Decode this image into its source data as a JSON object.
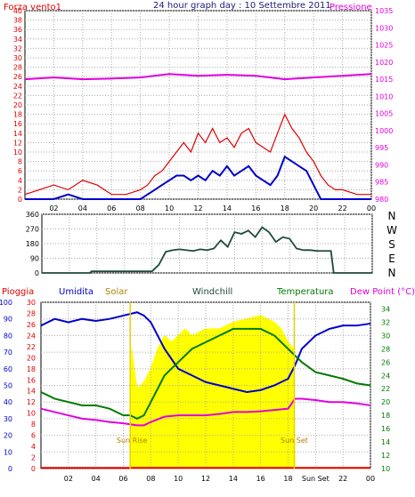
{
  "colors": {
    "red": "#e00000",
    "blue": "#0000cc",
    "magenta": "#e000e0",
    "darkgreen": "#1d4a3a",
    "green": "#007a00",
    "yellow": "#ffff00",
    "olive": "#b08000",
    "navy": "#20207a",
    "grid": "#aaaaaa"
  },
  "chart_data": [
    {
      "type": "line",
      "title": "24 hour graph day : 10 Settembre 2011",
      "legend_left": "Forza vento1",
      "legend_right": "Pressione",
      "x_ticks": [
        "02",
        "04",
        "06",
        "08",
        "10",
        "12",
        "14",
        "16",
        "18",
        "20",
        "22",
        "00"
      ],
      "y_left_ticks": [
        "0",
        "2",
        "4",
        "6",
        "8",
        "10",
        "12",
        "14",
        "16",
        "18",
        "20",
        "22",
        "24",
        "26",
        "28",
        "30",
        "32",
        "34",
        "36",
        "38",
        "40"
      ],
      "y_right_ticks": [
        "980",
        "985",
        "990",
        "995",
        "1000",
        "1005",
        "1010",
        "1015",
        "1020",
        "1025",
        "1030",
        "1035"
      ],
      "ylim_left": [
        0,
        40
      ],
      "ylim_right": [
        980,
        1035
      ],
      "series": [
        {
          "name": "Forza vento1",
          "axis": "left",
          "color": "#e00000",
          "x": [
            0,
            1,
            2,
            3,
            4,
            5,
            6,
            7,
            8,
            8.5,
            9,
            9.5,
            10,
            10.5,
            11,
            11.5,
            12,
            12.5,
            13,
            13.5,
            14,
            14.5,
            15,
            15.5,
            16,
            16.5,
            17,
            17.5,
            18,
            18.5,
            19,
            19.5,
            20,
            20.5,
            21,
            21.5,
            22,
            23,
            24
          ],
          "y": [
            1,
            2,
            3,
            2,
            4,
            3,
            1,
            1,
            2,
            3,
            5,
            6,
            8,
            10,
            12,
            10,
            14,
            12,
            15,
            12,
            13,
            11,
            14,
            15,
            12,
            11,
            10,
            14,
            18,
            15,
            13,
            10,
            8,
            5,
            3,
            2,
            2,
            1,
            1
          ]
        },
        {
          "name": "Gust",
          "axis": "left",
          "color": "#0000cc",
          "x": [
            0,
            1,
            2,
            3,
            4,
            5,
            6,
            7,
            8,
            8.5,
            9,
            9.5,
            10,
            10.5,
            11,
            11.5,
            12,
            12.5,
            13,
            13.5,
            14,
            14.5,
            15,
            15.5,
            16,
            16.5,
            17,
            17.5,
            18,
            18.5,
            19,
            19.5,
            20,
            20.5,
            21,
            22,
            23,
            24
          ],
          "y": [
            0,
            0,
            0,
            1,
            0,
            0,
            0,
            0,
            0,
            1,
            2,
            3,
            4,
            5,
            5,
            4,
            5,
            4,
            6,
            5,
            7,
            5,
            6,
            7,
            5,
            4,
            3,
            5,
            9,
            8,
            7,
            6,
            3,
            0,
            0,
            0,
            0,
            0
          ]
        },
        {
          "name": "Pressione",
          "axis": "right",
          "color": "#e000e0",
          "x": [
            0,
            2,
            4,
            6,
            8,
            10,
            12,
            14,
            16,
            18,
            20,
            22,
            24
          ],
          "y": [
            1015,
            1015.5,
            1015,
            1015.2,
            1015.5,
            1016.5,
            1016,
            1016.3,
            1016,
            1015,
            1015.5,
            1016,
            1016.5
          ]
        }
      ]
    },
    {
      "type": "line",
      "title": "",
      "y_left_ticks": [
        "0",
        "90",
        "180",
        "270",
        "360"
      ],
      "y_right_labels": [
        "N",
        "W",
        "S",
        "E",
        "N"
      ],
      "ylim_left": [
        0,
        360
      ],
      "series": [
        {
          "name": "Direzione vento",
          "axis": "left",
          "color": "#1d4a3a",
          "x": [
            0,
            3.5,
            3.6,
            6,
            7,
            8,
            8.5,
            9,
            9.5,
            10,
            10.5,
            11,
            11.5,
            12,
            12.5,
            13,
            13.5,
            14,
            14.5,
            15,
            15.5,
            16,
            16.5,
            17,
            17.5,
            18,
            18.5,
            19,
            19.5,
            20,
            21,
            21.2,
            22,
            24
          ],
          "y": [
            0,
            0,
            10,
            10,
            10,
            10,
            50,
            130,
            140,
            145,
            140,
            135,
            145,
            140,
            150,
            200,
            160,
            250,
            240,
            260,
            220,
            280,
            250,
            190,
            220,
            210,
            150,
            140,
            140,
            135,
            135,
            0,
            0,
            0
          ]
        }
      ]
    },
    {
      "type": "line",
      "legend": [
        "Pioggia",
        "Umidita",
        "Solar",
        "Windchill",
        "Temperatura",
        "Dew Point (°C)"
      ],
      "x_ticks": [
        "02",
        "04",
        "06",
        "08",
        "10",
        "12",
        "14",
        "16",
        "18",
        "Sun Set",
        "22",
        "00"
      ],
      "annotations": [
        "Sun Rise",
        "Sun Set"
      ],
      "y_hum_ticks": [
        "0",
        "10",
        "20",
        "30",
        "40",
        "50",
        "60",
        "70",
        "80",
        "90",
        "100"
      ],
      "y_rain_ticks": [
        "0",
        "2",
        "4",
        "6",
        "8",
        "10",
        "12",
        "14",
        "16",
        "18",
        "20",
        "22",
        "24",
        "26",
        "28",
        "30"
      ],
      "y_temp_ticks": [
        "10",
        "12",
        "14",
        "16",
        "18",
        "20",
        "22",
        "24",
        "26",
        "28",
        "30",
        "32",
        "34"
      ],
      "ylim_temp": [
        10,
        35
      ],
      "series": [
        {
          "name": "Solar",
          "axis": "temp",
          "color": "#ffff00",
          "x": [
            6.5,
            6.6,
            7,
            7.5,
            8,
            8.5,
            9,
            9.5,
            10,
            10.5,
            11,
            12,
            13,
            14,
            15,
            16,
            17,
            17.5,
            18,
            18.4,
            18.5,
            24
          ],
          "y": [
            10,
            28,
            22,
            23,
            25,
            28,
            30,
            29,
            30,
            31,
            30,
            31,
            31,
            32,
            32.5,
            33,
            32,
            31,
            29,
            28,
            10,
            10
          ]
        },
        {
          "name": "Umidita",
          "axis": "temp",
          "color": "#0000cc",
          "x": [
            0,
            1,
            2,
            3,
            4,
            5,
            6,
            7,
            7.5,
            8,
            9,
            10,
            11,
            12,
            13,
            14,
            15,
            16,
            17,
            18,
            18.5,
            19,
            20,
            21,
            22,
            23,
            24
          ],
          "y": [
            31.5,
            32.5,
            32,
            32.5,
            32.2,
            32.5,
            33,
            33.5,
            33,
            32,
            28,
            25,
            24,
            23,
            22.5,
            22,
            21.5,
            21.8,
            22.5,
            23.5,
            25.5,
            28,
            30,
            31,
            31.5,
            31.5,
            31.8
          ]
        },
        {
          "name": "Temperatura",
          "axis": "temp",
          "color": "#007a00",
          "x": [
            0,
            1,
            2,
            3,
            4,
            5,
            6,
            6.5,
            7,
            7.5,
            8,
            8.5,
            9,
            10,
            11,
            12,
            13,
            14,
            15,
            16,
            17,
            18,
            19,
            20,
            21,
            22,
            23,
            24
          ],
          "y": [
            21.5,
            20.5,
            20,
            19.5,
            19.5,
            19,
            18,
            18,
            17.5,
            18,
            20,
            22,
            24,
            26,
            28,
            29,
            30,
            31,
            31,
            31,
            30,
            28,
            26,
            24.5,
            24,
            23.5,
            22.8,
            22.5
          ]
        },
        {
          "name": "Dew Point (°C)",
          "axis": "temp",
          "color": "#e000e0",
          "x": [
            0,
            1,
            2,
            3,
            4,
            5,
            6,
            7,
            7.5,
            8,
            9,
            10,
            11,
            12,
            13,
            14,
            15,
            16,
            17,
            18,
            18.5,
            19,
            20,
            21,
            22,
            23,
            24
          ],
          "y": [
            19,
            18.5,
            18,
            17.5,
            17.3,
            17,
            16.8,
            16.5,
            16.5,
            17,
            17.8,
            18,
            18,
            18,
            18.2,
            18.5,
            18.5,
            18.6,
            18.8,
            19,
            20.5,
            20.5,
            20.3,
            20,
            20,
            19.8,
            19.5
          ]
        },
        {
          "name": "Pioggia",
          "axis": "temp",
          "color": "#e00000",
          "x": [
            0,
            24
          ],
          "y": [
            10.1,
            10.1
          ]
        }
      ]
    }
  ]
}
